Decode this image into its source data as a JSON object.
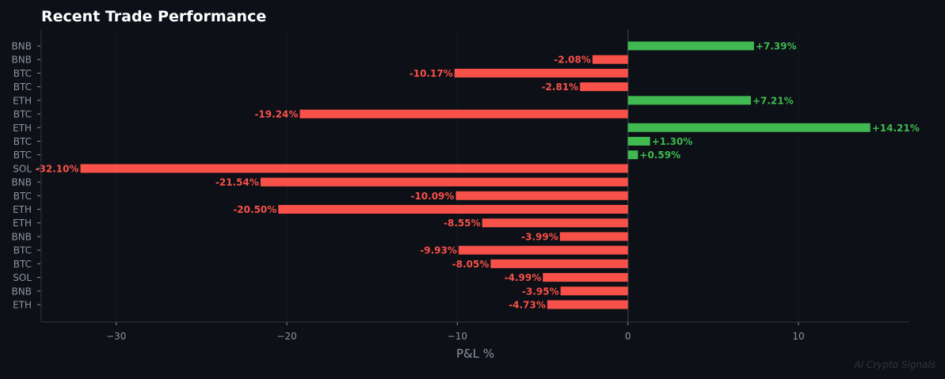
{
  "chart_data": {
    "type": "bar",
    "orientation": "horizontal",
    "title": "Recent Trade Performance",
    "xlabel": "P&L %",
    "ylabel": "",
    "xlim": [
      -34.4,
      16.5
    ],
    "xticks": [
      -30,
      -20,
      -10,
      0,
      10
    ],
    "xtick_labels": [
      "−30",
      "−20",
      "−10",
      "0",
      "10"
    ],
    "grid": true,
    "categories": [
      "BNB",
      "BNB",
      "BTC",
      "BTC",
      "ETH",
      "BTC",
      "ETH",
      "BTC",
      "BTC",
      "SOL",
      "BNB",
      "BTC",
      "ETH",
      "ETH",
      "BNB",
      "BTC",
      "BTC",
      "SOL",
      "BNB",
      "ETH"
    ],
    "values": [
      7.39,
      -2.08,
      -10.17,
      -2.81,
      7.21,
      -19.24,
      14.21,
      1.3,
      0.59,
      -32.1,
      -21.54,
      -10.09,
      -20.5,
      -8.55,
      -3.99,
      -9.93,
      -8.05,
      -4.99,
      -3.95,
      -4.73
    ],
    "data_labels": [
      "+7.39%",
      "-2.08%",
      "-10.17%",
      "-2.81%",
      "+7.21%",
      "-19.24%",
      "+14.21%",
      "+1.30%",
      "+0.59%",
      "-32.10%",
      "-21.54%",
      "-10.09%",
      "-20.50%",
      "-8.55%",
      "-3.99%",
      "-9.93%",
      "-8.05%",
      "-4.99%",
      "-3.95%",
      "-4.73%"
    ],
    "colors": {
      "positive": "#3fb950",
      "negative": "#f85149",
      "background": "#0d1017"
    }
  },
  "watermark": "AI Crypto Signals"
}
